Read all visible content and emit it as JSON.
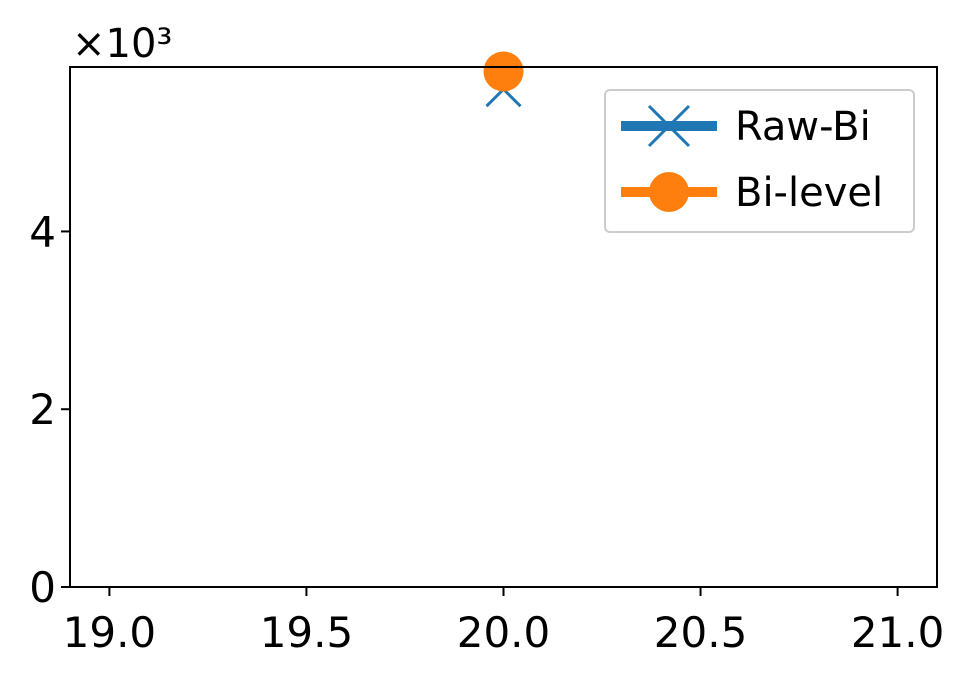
{
  "chart_data": {
    "type": "line",
    "title": "",
    "xlabel": "",
    "ylabel": "",
    "xlim": [
      18.9,
      21.1
    ],
    "ylim": [
      0,
      5.85
    ],
    "y_scale_factor": "×10³",
    "x_ticks": [
      "19.0",
      "19.5",
      "20.0",
      "20.5",
      "21.0"
    ],
    "y_ticks": [
      "0",
      "2",
      "4"
    ],
    "x_tick_values": [
      19.0,
      19.5,
      20.0,
      20.5,
      21.0
    ],
    "y_tick_values": [
      0,
      2,
      4
    ],
    "grid": false,
    "legend_placement": "upper-right",
    "series": [
      {
        "name": "Raw-Bi",
        "marker": "x",
        "color": "#1f77b4",
        "x": [
          20.0
        ],
        "y": [
          5.6
        ]
      },
      {
        "name": "Bi-level",
        "marker": "o",
        "color": "#ff7f0e",
        "x": [
          20.0
        ],
        "y": [
          5.8
        ]
      }
    ]
  }
}
